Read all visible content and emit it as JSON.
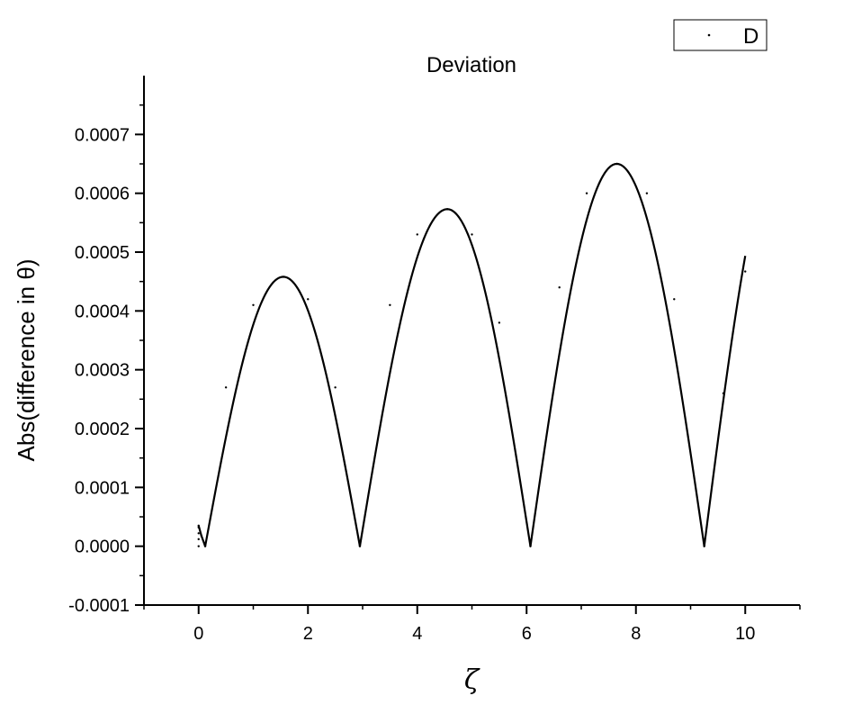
{
  "chart_data": {
    "type": "line",
    "title": "Deviation",
    "xlabel": "ζ",
    "ylabel": "Abs(difference in θ)",
    "xlim": [
      -1,
      11
    ],
    "ylim": [
      -0.0001,
      0.0008
    ],
    "x_ticks": [
      0,
      2,
      4,
      6,
      8,
      10
    ],
    "x_tick_labels": [
      "0",
      "2",
      "4",
      "6",
      "8",
      "10"
    ],
    "y_ticks": [
      -0.0001,
      0.0,
      0.0001,
      0.0002,
      0.0003,
      0.0004,
      0.0005,
      0.0006,
      0.0007
    ],
    "y_tick_labels": [
      "-0.0001",
      "0.0000",
      "0.0001",
      "0.0002",
      "0.0003",
      "0.0004",
      "0.0005",
      "0.0006",
      "0.0007"
    ],
    "grid": false,
    "legend": {
      "position": "top-right",
      "entries": [
        "D"
      ]
    },
    "series": [
      {
        "name": "D",
        "color": "#000000",
        "x": [
          0.0,
          0.05,
          0.12,
          0.5,
          1.0,
          1.55,
          2.0,
          2.5,
          2.95,
          3.5,
          4.0,
          4.55,
          5.0,
          5.5,
          6.07,
          6.6,
          7.1,
          7.65,
          8.2,
          8.7,
          9.25,
          9.6,
          10.0
        ],
        "y": [
          3.5e-05,
          1.8e-05,
          0.0,
          0.00027,
          0.00041,
          0.000458,
          0.00042,
          0.00027,
          0.0,
          0.00041,
          0.00053,
          0.000573,
          0.00053,
          0.00038,
          0.0,
          0.00044,
          0.0006,
          0.00065,
          0.0006,
          0.00042,
          0.0,
          0.00026,
          0.000467
        ]
      }
    ]
  }
}
